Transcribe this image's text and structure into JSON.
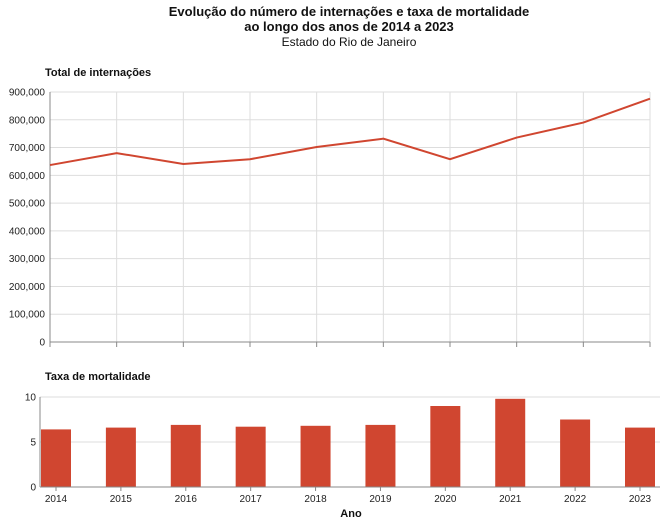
{
  "title_line1": "Evolução do número de internações e taxa de mortalidade",
  "title_line2": "ao longo dos anos de 2014 a 2023",
  "subtitle": "Estado do Rio de Janeiro",
  "colors": {
    "series": "#d04630",
    "grid": "#dddddd",
    "axis": "#888888"
  },
  "chart_data": [
    {
      "type": "line",
      "title": "Total de internações",
      "x": [
        "2014",
        "2015",
        "2016",
        "2017",
        "2018",
        "2019",
        "2020",
        "2021",
        "2022",
        "2023"
      ],
      "values": [
        637000,
        680000,
        641000,
        658000,
        702000,
        732000,
        658000,
        736000,
        790000,
        876000
      ],
      "ylim": [
        0,
        900000
      ],
      "yticks": [
        "0",
        "100,000",
        "200,000",
        "300,000",
        "400,000",
        "500,000",
        "600,000",
        "700,000",
        "800,000",
        "900,000"
      ],
      "grid": true
    },
    {
      "type": "bar",
      "title": "Taxa de mortalidade",
      "categories": [
        "2014",
        "2015",
        "2016",
        "2017",
        "2018",
        "2019",
        "2020",
        "2021",
        "2022",
        "2023"
      ],
      "values": [
        6.4,
        6.6,
        6.9,
        6.7,
        6.8,
        6.9,
        9.0,
        9.8,
        7.5,
        6.6
      ],
      "ylim": [
        0,
        10
      ],
      "yticks": [
        "0",
        "5",
        "10"
      ],
      "xlabel": "Ano",
      "grid": true
    }
  ]
}
